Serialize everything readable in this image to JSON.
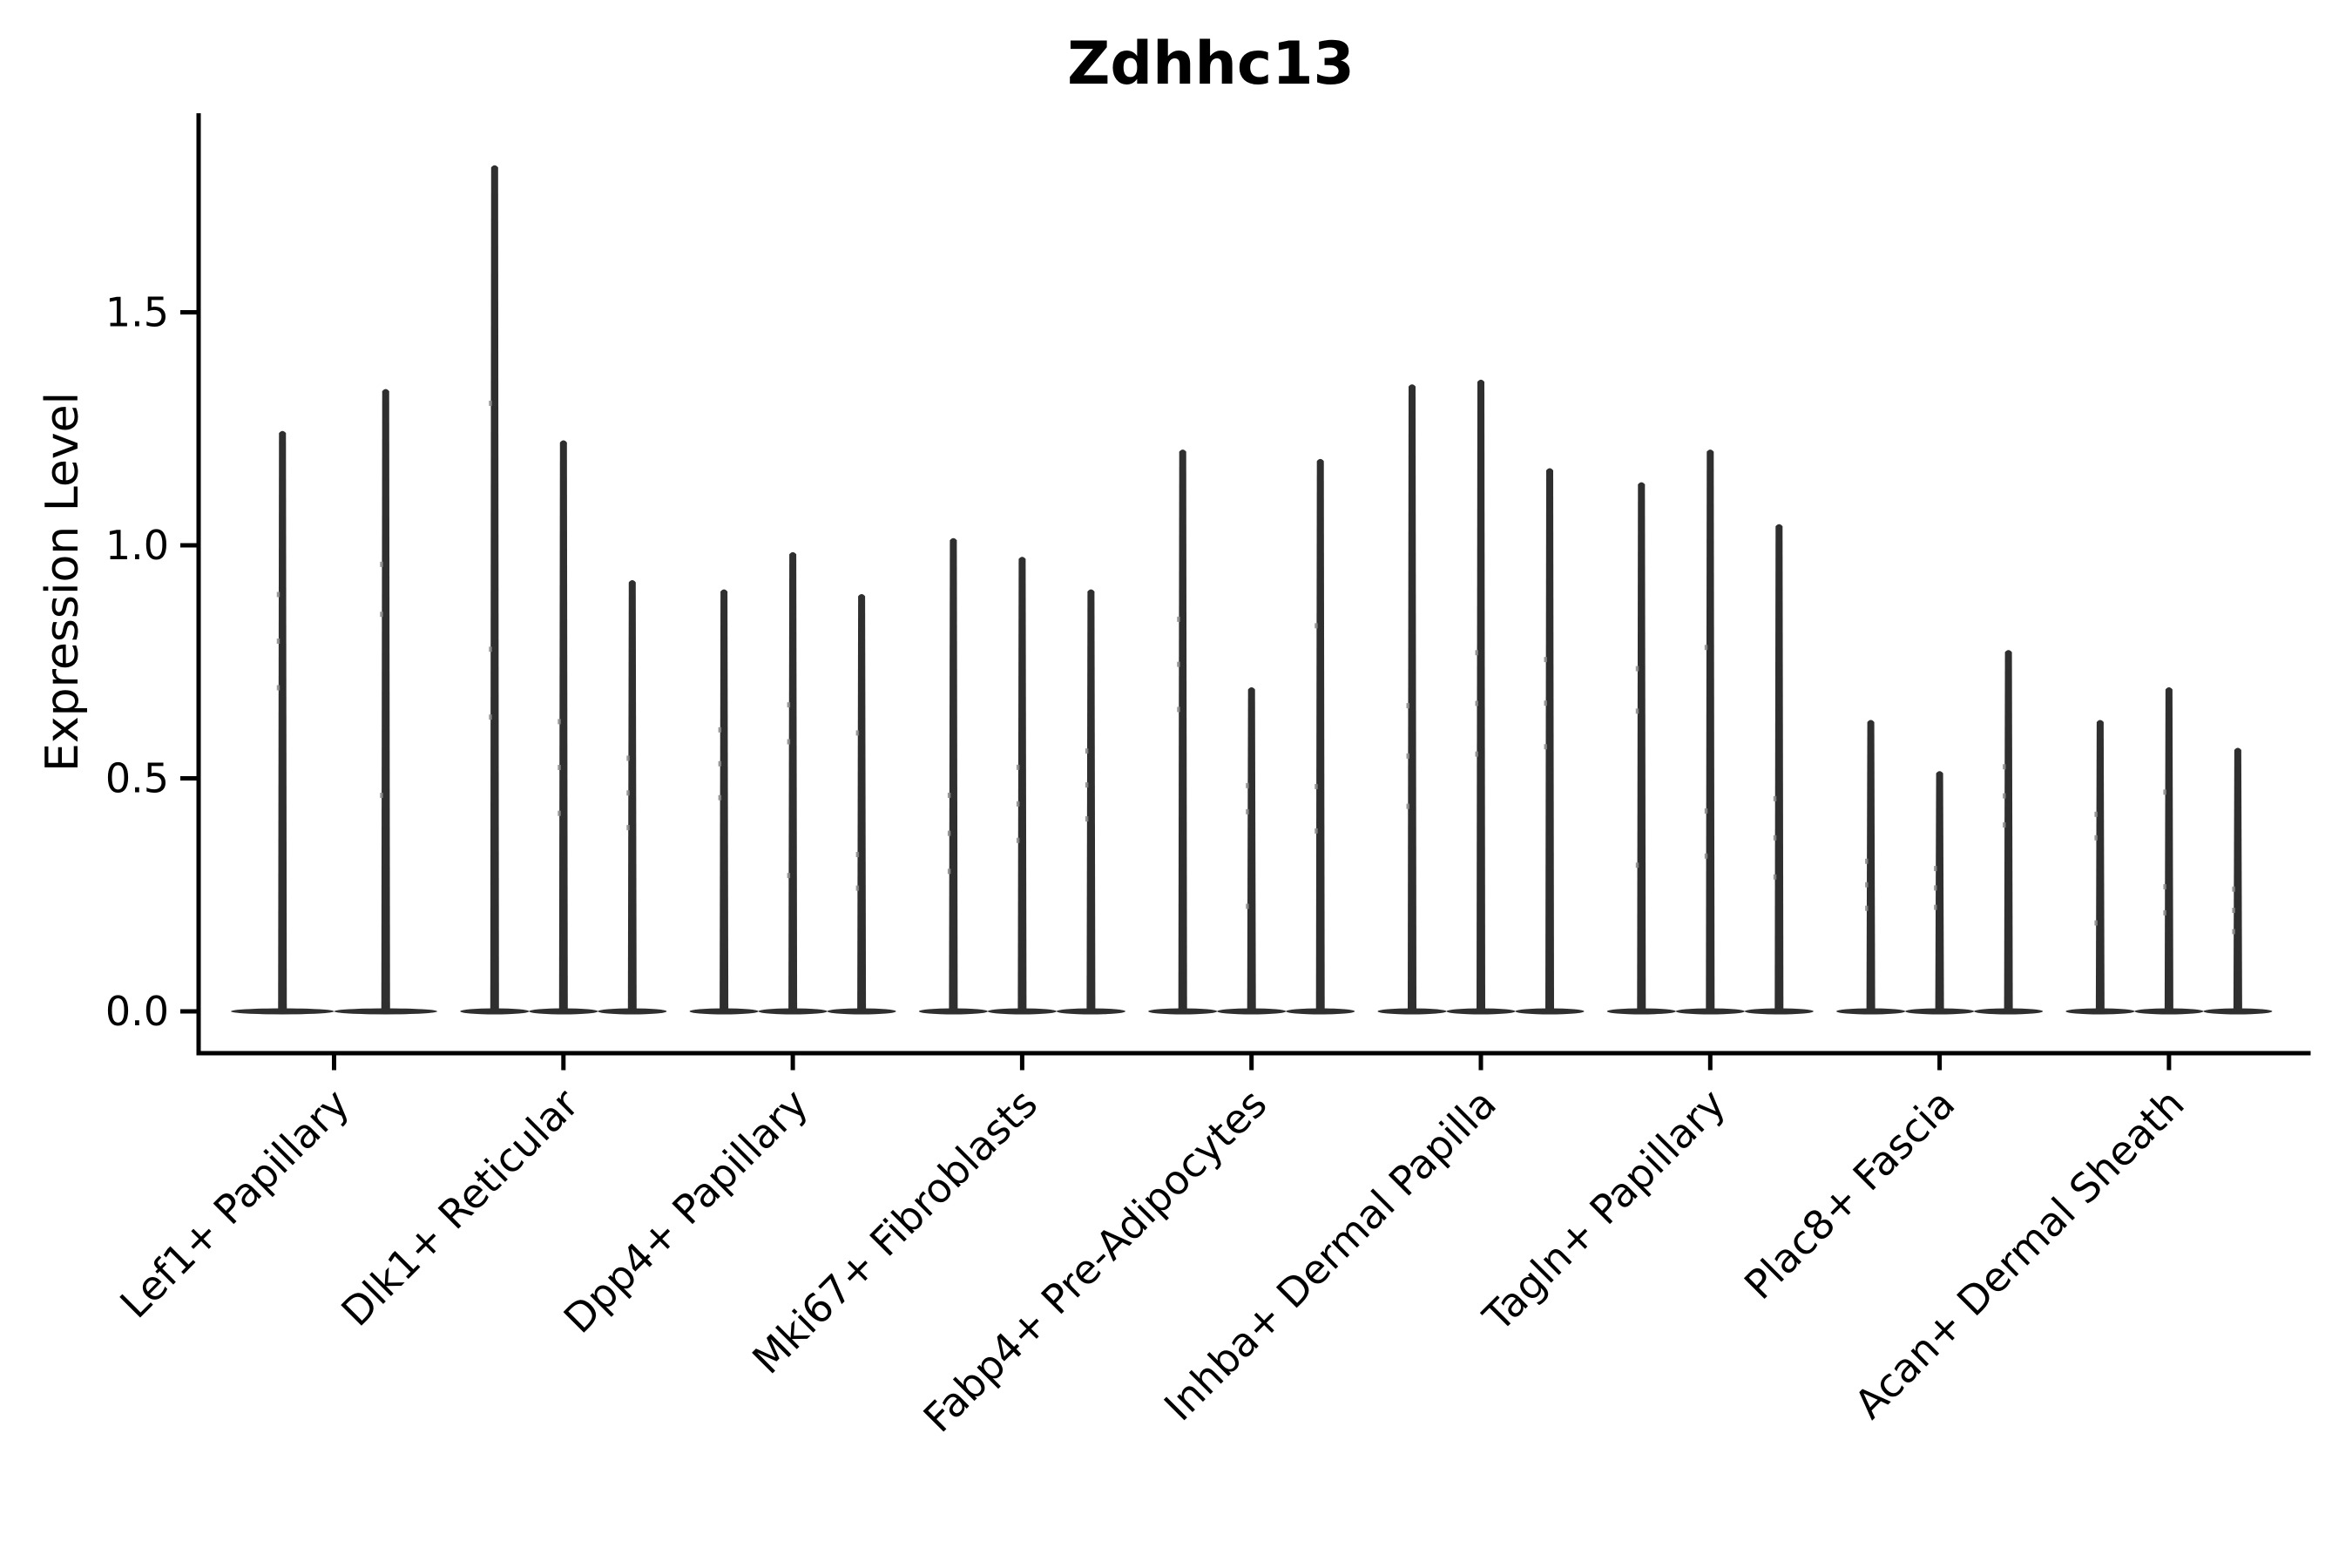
{
  "page": {
    "background": "#ffffff"
  },
  "chart_data": {
    "type": "violin",
    "title": "Zdhhc13",
    "ylabel": "Expression Level",
    "xlabel": "",
    "ytick_labels": [
      "0.0",
      "0.5",
      "1.0",
      "1.5"
    ],
    "ytick_values": [
      0.0,
      0.5,
      1.0,
      1.5
    ],
    "ylim": [
      -0.09,
      1.93
    ],
    "grid": false,
    "legend_position": "none",
    "violin_color": "#2f2f2f",
    "jitter_mark_color": "#888888",
    "axis_color": "#000000",
    "groups": [
      {
        "label": "Lef1+ Papillary",
        "violin_maxima": [
          1.25,
          1.34
        ]
      },
      {
        "label": "Dlk1+ Reticular",
        "violin_maxima": [
          1.82,
          1.23,
          0.93
        ]
      },
      {
        "label": "Dpp4+ Papillary",
        "violin_maxima": [
          0.91,
          0.99,
          0.9
        ]
      },
      {
        "label": "Mki67+ Fibroblasts",
        "violin_maxima": [
          1.02,
          0.98,
          0.91
        ]
      },
      {
        "label": "Fabp4+ Pre-Adipocytes",
        "violin_maxima": [
          1.21,
          0.7,
          1.19
        ]
      },
      {
        "label": "Inhba+ Dermal Papilla",
        "violin_maxima": [
          1.35,
          1.36,
          1.17
        ]
      },
      {
        "label": "Tagln+ Papillary",
        "violin_maxima": [
          1.14,
          1.21,
          1.05
        ]
      },
      {
        "label": "Plac8+ Fascia",
        "violin_maxima": [
          0.63,
          0.52,
          0.78
        ]
      },
      {
        "label": "Acan+ Dermal Sheath",
        "violin_maxima": [
          0.63,
          0.7,
          0.57
        ]
      }
    ]
  }
}
